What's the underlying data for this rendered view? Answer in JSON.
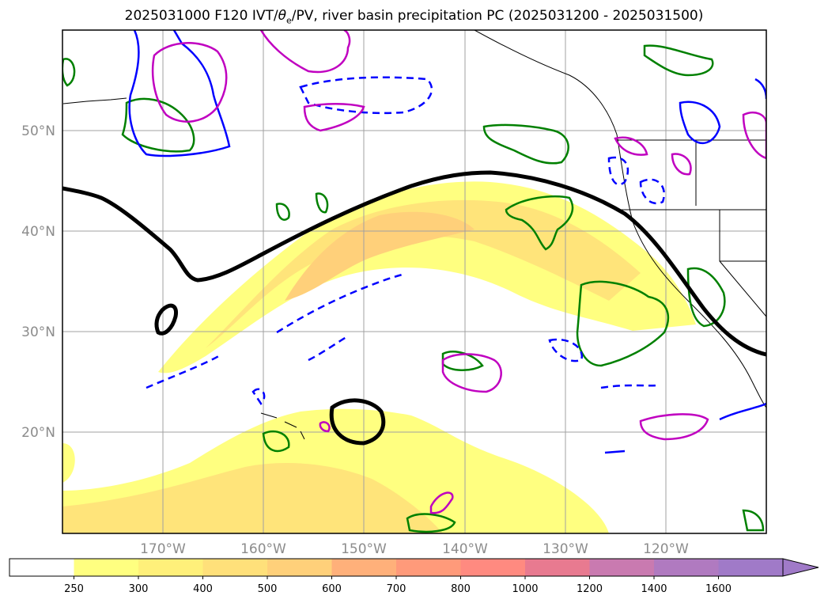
{
  "title": {
    "prefix": "2025031000 F120 IVT/",
    "theta": "θ",
    "theta_sub": "e",
    "suffix": "/PV, river basin precipitation PC (2025031200 - 2025031500)"
  },
  "map": {
    "lat_labels": [
      "50°N",
      "40°N",
      "30°N",
      "20°N"
    ],
    "lon_labels": [
      "170°W",
      "160°W",
      "150°W",
      "140°W",
      "130°W",
      "120°W"
    ]
  },
  "colorbar": {
    "ticks": [
      "250",
      "300",
      "400",
      "500",
      "600",
      "700",
      "800",
      "1000",
      "1200",
      "1400",
      "1600"
    ],
    "colors": [
      "#ffffff",
      "#ffff80",
      "#fff07a",
      "#ffe07a",
      "#ffd07a",
      "#ffb07a",
      "#ff9a7a",
      "#ff8a80",
      "#e87a90",
      "#c97ab0",
      "#b07ac0",
      "#a07ac8"
    ],
    "extend": "max"
  },
  "legend_colors": {
    "pv_black": "#000000",
    "theta_e_blue": "#0000ff",
    "precip_green": "#008000",
    "precip_magenta": "#c000c0"
  }
}
